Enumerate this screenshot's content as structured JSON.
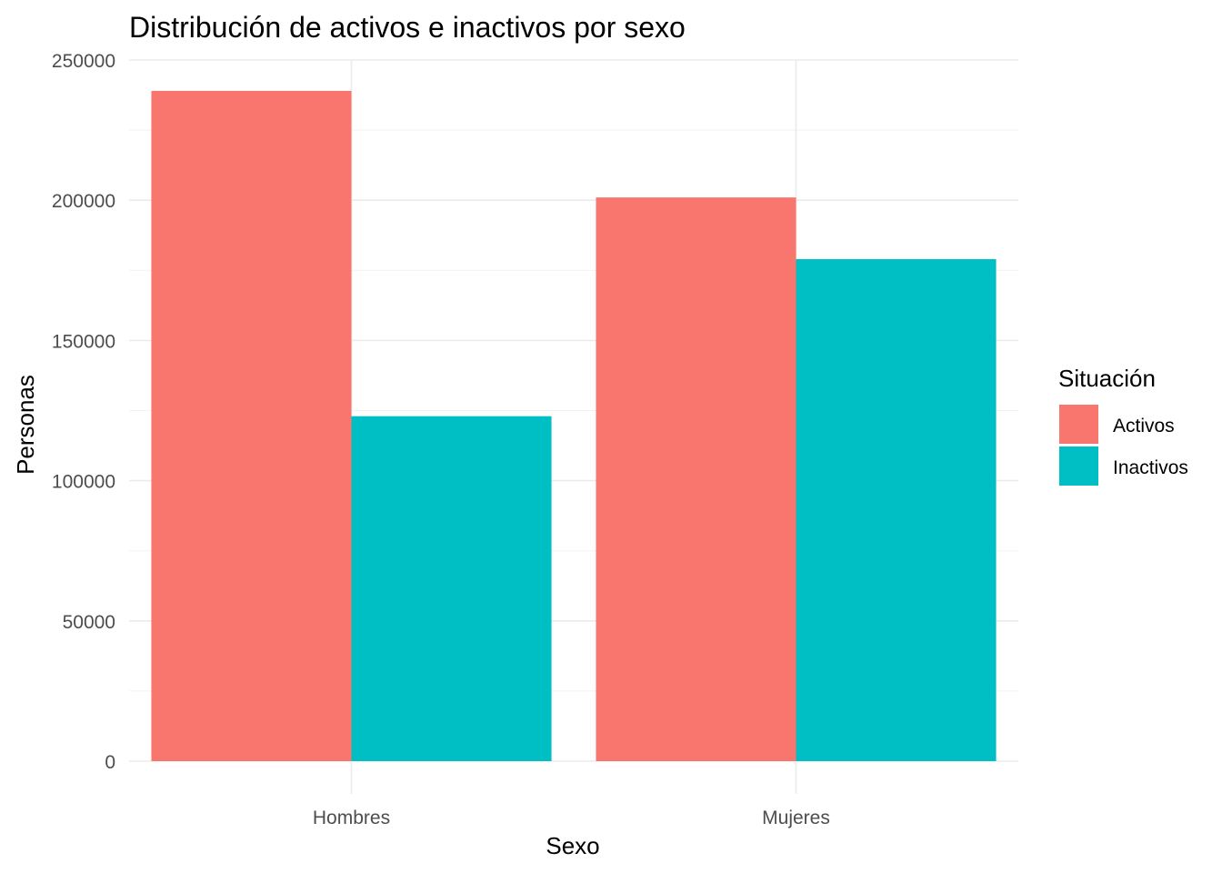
{
  "chart_data": {
    "type": "bar",
    "title": "Distribución de activos e inactivos por sexo",
    "xlabel": "Sexo",
    "ylabel": "Personas",
    "categories": [
      "Hombres",
      "Mujeres"
    ],
    "series": [
      {
        "name": "Activos",
        "color": "#F8766D",
        "values": [
          239000,
          201000
        ]
      },
      {
        "name": "Inactivos",
        "color": "#00BFC4",
        "values": [
          123000,
          179000
        ]
      }
    ],
    "ylim": [
      0,
      250000
    ],
    "yticks": [
      "0",
      "50000",
      "100000",
      "150000",
      "200000",
      "250000"
    ],
    "grid": true,
    "legend": {
      "title": "Situación",
      "position": "right"
    }
  }
}
